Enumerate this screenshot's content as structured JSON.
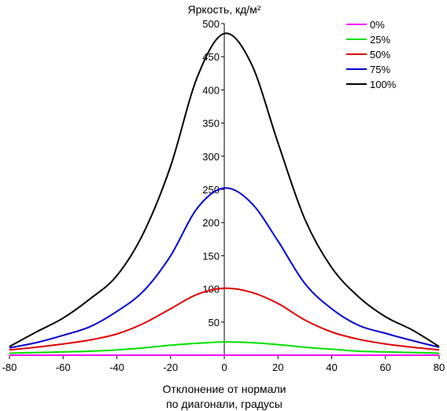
{
  "chart_data": {
    "type": "line",
    "title": "Яркость, кд/м²",
    "xlabel_line1": "Отклонение от нормали",
    "xlabel_line2": "по диагонали, градусы",
    "ylabel": "Яркость, кд/м²",
    "xlim": [
      -80,
      80
    ],
    "ylim": [
      0,
      500
    ],
    "x_ticks": [
      -80,
      -60,
      -40,
      -20,
      0,
      20,
      40,
      60,
      80
    ],
    "y_ticks": [
      50,
      100,
      150,
      200,
      250,
      300,
      350,
      400,
      450,
      500
    ],
    "grid": false,
    "legend_position": "top-right",
    "x": [
      -80,
      -70,
      -60,
      -50,
      -40,
      -30,
      -20,
      -10,
      0,
      10,
      20,
      30,
      40,
      50,
      60,
      70,
      80
    ],
    "series": [
      {
        "name": "0%",
        "color": "#ff00ff",
        "values": [
          0,
          0,
          0,
          0,
          0,
          0,
          0,
          0,
          0,
          0,
          0,
          0,
          0,
          0,
          0,
          0,
          0
        ]
      },
      {
        "name": "25%",
        "color": "#00e000",
        "values": [
          3,
          4,
          5,
          6,
          8,
          11,
          15,
          18,
          20,
          19,
          16,
          12,
          9,
          6,
          5,
          4,
          3
        ]
      },
      {
        "name": "50%",
        "color": "#e00000",
        "values": [
          8,
          12,
          17,
          23,
          32,
          48,
          70,
          92,
          101,
          95,
          78,
          53,
          35,
          24,
          17,
          12,
          8
        ]
      },
      {
        "name": "75%",
        "color": "#0000cc",
        "values": [
          11,
          19,
          30,
          43,
          66,
          97,
          150,
          222,
          252,
          230,
          172,
          108,
          70,
          45,
          33,
          22,
          12
        ]
      },
      {
        "name": "100%",
        "color": "#000000",
        "values": [
          13,
          35,
          56,
          85,
          120,
          185,
          285,
          420,
          485,
          440,
          320,
          205,
          132,
          88,
          58,
          38,
          13
        ]
      }
    ]
  }
}
